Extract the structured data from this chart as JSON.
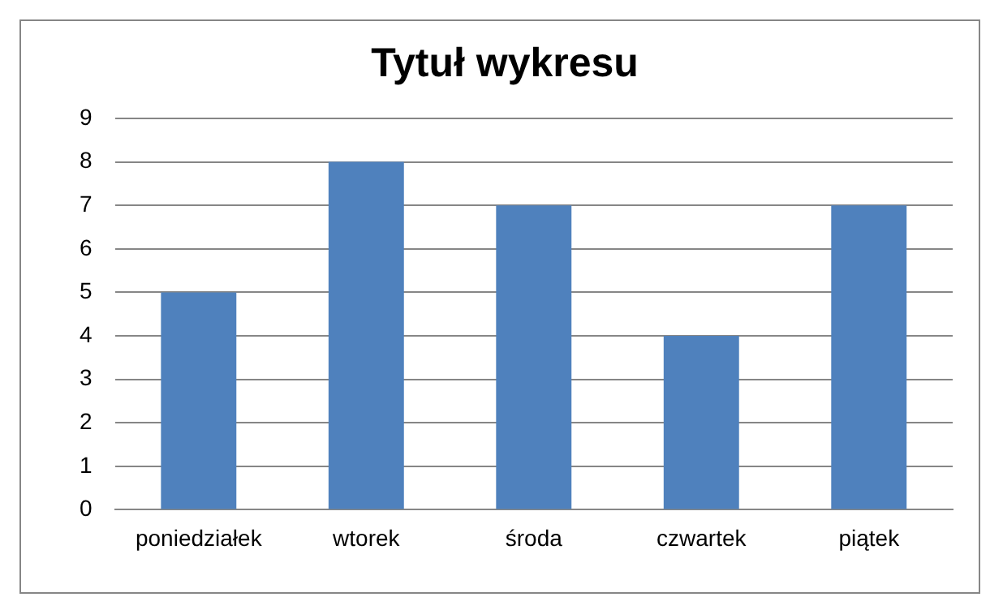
{
  "chart_data": {
    "type": "bar",
    "title": "Tytuł wykresu",
    "categories": [
      "poniedziałek",
      "wtorek",
      "środa",
      "czwartek",
      "piątek"
    ],
    "values": [
      5,
      8,
      7,
      4,
      7
    ],
    "color": "#4f81bd",
    "ylim": [
      0,
      9
    ],
    "yticks": [
      0,
      1,
      2,
      3,
      4,
      5,
      6,
      7,
      8,
      9
    ],
    "grid": "y"
  }
}
